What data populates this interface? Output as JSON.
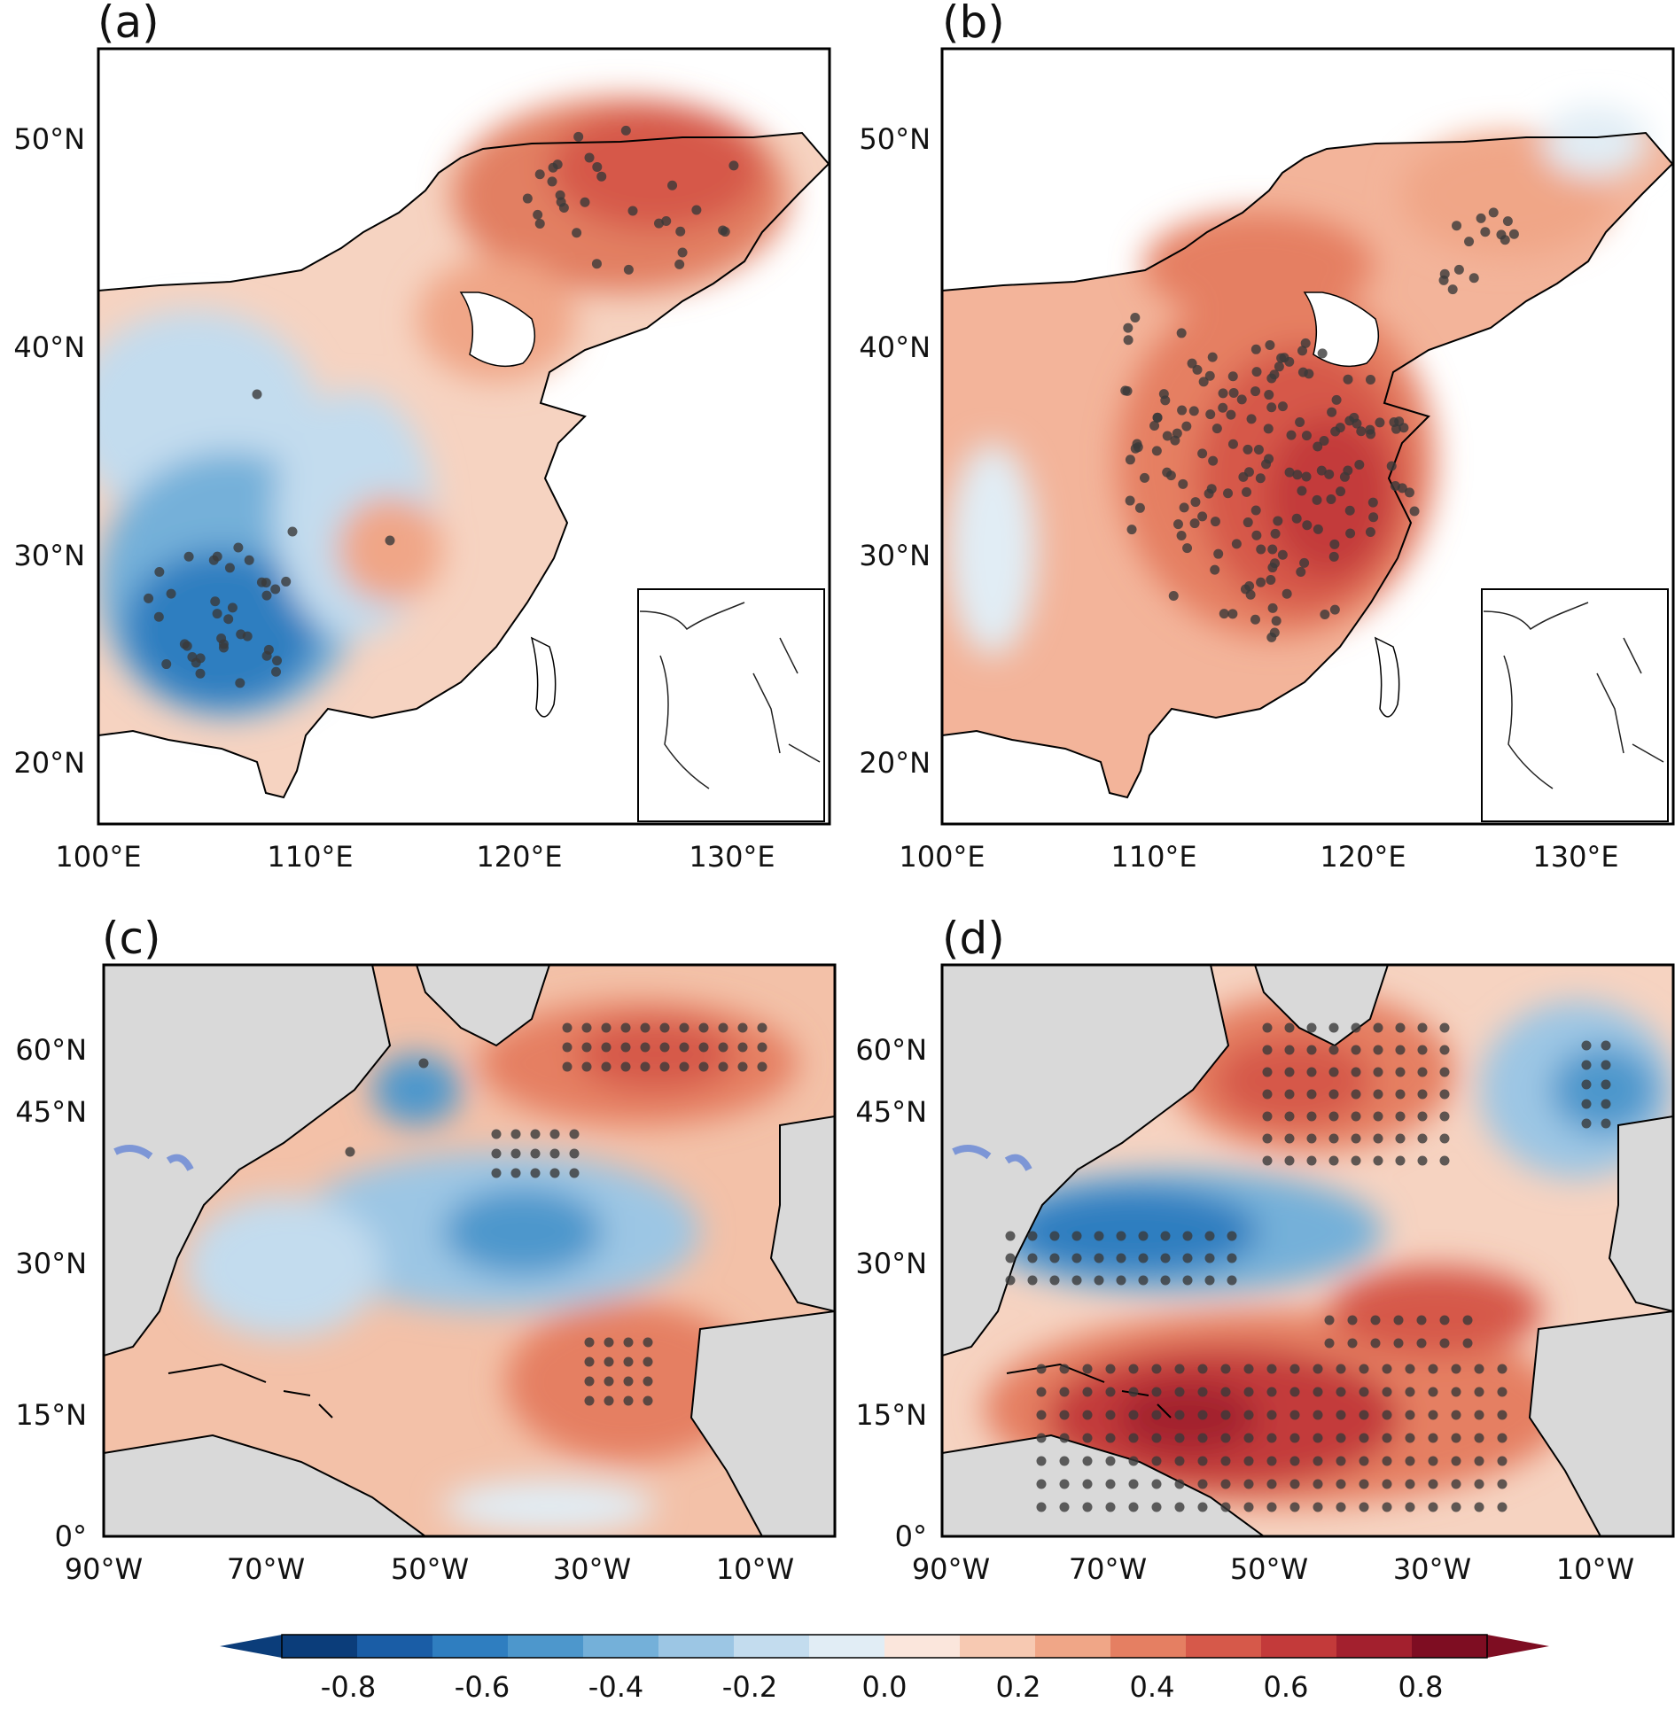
{
  "panels": [
    {
      "label": "(a)",
      "region": "china",
      "x_ticks": [
        "100°E",
        "110°E",
        "120°E",
        "130°E"
      ],
      "y_ticks": [
        "20°N",
        "30°N",
        "40°N",
        "50°N"
      ],
      "has_inset": true,
      "pattern": "northeast positive, southwest negative",
      "stipple_regions": [
        "northeast China",
        "southwest China"
      ]
    },
    {
      "label": "(b)",
      "region": "china",
      "x_ticks": [
        "100°E",
        "110°E",
        "120°E",
        "130°E"
      ],
      "y_ticks": [
        "20°N",
        "30°N",
        "40°N",
        "50°N"
      ],
      "has_inset": true,
      "pattern": "widespread positive, strongest in eastern China",
      "stipple_regions": [
        "eastern China",
        "north China",
        "northeast China"
      ]
    },
    {
      "label": "(c)",
      "region": "north-atlantic",
      "x_ticks": [
        "90°W",
        "70°W",
        "50°W",
        "30°W",
        "10°W"
      ],
      "y_ticks": [
        "0°",
        "15°N",
        "30°N",
        "45°N",
        "60°N"
      ],
      "has_inset": false,
      "pattern": "tripole: positive subpolar, negative midlatitude, positive tropical",
      "stipple_regions": [
        "subpolar gyre",
        "central midlatitude",
        "eastern tropical"
      ]
    },
    {
      "label": "(d)",
      "region": "north-atlantic",
      "x_ticks": [
        "90°W",
        "70°W",
        "50°W",
        "30°W",
        "10°W"
      ],
      "y_ticks": [
        "0°",
        "15°N",
        "30°N",
        "45°N",
        "60°N"
      ],
      "has_inset": false,
      "pattern": "tripole: positive subpolar, negative Gulf Stream band, strong positive tropics",
      "stipple_regions": [
        "Labrador/subpolar",
        "western midlatitude",
        "tropical Atlantic",
        "northeast Atlantic"
      ]
    }
  ],
  "colorbar": {
    "tick_labels": [
      "-0.8",
      "-0.6",
      "-0.4",
      "-0.2",
      "0.0",
      "0.2",
      "0.4",
      "0.6",
      "0.8"
    ],
    "ticks": [
      -0.8,
      -0.6,
      -0.4,
      -0.2,
      0.0,
      0.2,
      0.4,
      0.6,
      0.8
    ],
    "range": [
      -0.9,
      0.9
    ],
    "extend": "both",
    "colors": [
      "#0b3d7a",
      "#1a5da6",
      "#2f7ec0",
      "#4d97cc",
      "#74b0d9",
      "#9cc6e4",
      "#c3dcee",
      "#e1edf5",
      "#fbe6dc",
      "#f7c9b2",
      "#f0a687",
      "#e57f62",
      "#d6594a",
      "#c33a3a",
      "#a3202e",
      "#7e0d22"
    ]
  }
}
